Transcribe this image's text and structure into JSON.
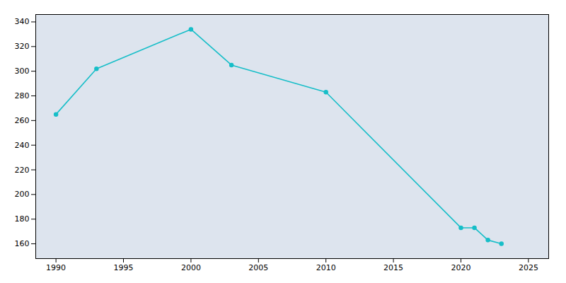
{
  "chart_data": {
    "type": "line",
    "x": [
      1990,
      1993,
      2000,
      2003,
      2010,
      2020,
      2021,
      2022,
      2023
    ],
    "values": [
      265,
      302,
      334,
      305,
      283,
      173,
      173,
      163,
      160
    ],
    "color": "#17BEC8",
    "marker": "circle",
    "xlim": [
      1988.5,
      2026.5
    ],
    "ylim": [
      148,
      346
    ],
    "xticks": [
      1990,
      1995,
      2000,
      2005,
      2010,
      2015,
      2020,
      2025
    ],
    "yticks": [
      160,
      180,
      200,
      220,
      240,
      260,
      280,
      300,
      320,
      340
    ],
    "grid": true
  }
}
